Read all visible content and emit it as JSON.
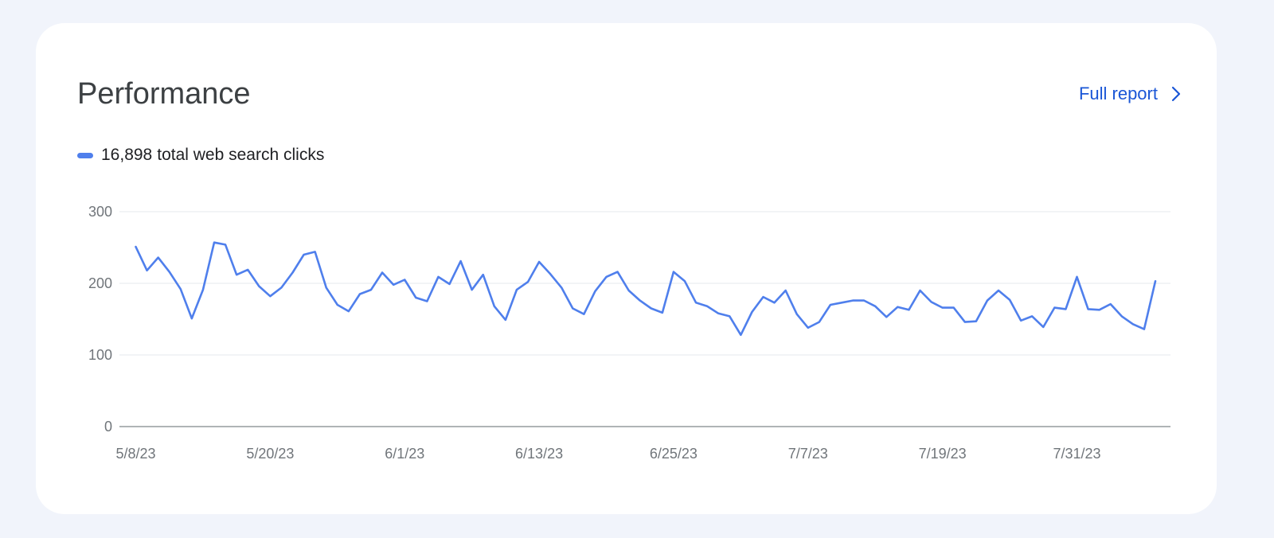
{
  "card": {
    "title": "Performance",
    "full_report_label": "Full report"
  },
  "legend": {
    "total": "16,898",
    "label": "total web search clicks",
    "color": "#4f7fec"
  },
  "colors": {
    "accent": "#1a56d6",
    "series": "#4f7fec",
    "grid": "#e6e8ec",
    "axis": "#80868b",
    "background": "#f1f4fb"
  },
  "chart_data": {
    "type": "line",
    "title": "",
    "xlabel": "",
    "ylabel": "",
    "ylim": [
      0,
      300
    ],
    "yticks": [
      0,
      100,
      200,
      300
    ],
    "xtick_labels": [
      "5/8/23",
      "5/20/23",
      "6/1/23",
      "6/13/23",
      "6/25/23",
      "7/7/23",
      "7/19/23",
      "7/31/23"
    ],
    "grid": true,
    "legend_position": "top-left",
    "x_start": "5/8/23",
    "x_end": "8/10/23",
    "series": [
      {
        "name": "total web search clicks",
        "color": "#4f7fec",
        "values": [
          251,
          218,
          236,
          216,
          192,
          151,
          191,
          257,
          254,
          212,
          219,
          196,
          182,
          194,
          215,
          240,
          244,
          194,
          170,
          161,
          185,
          191,
          215,
          198,
          205,
          180,
          175,
          209,
          199,
          231,
          191,
          212,
          168,
          149,
          191,
          202,
          230,
          213,
          194,
          165,
          157,
          189,
          209,
          216,
          190,
          176,
          165,
          159,
          216,
          203,
          173,
          168,
          158,
          154,
          128,
          160,
          181,
          173,
          190,
          157,
          138,
          146,
          170,
          173,
          176,
          176,
          168,
          153,
          167,
          163,
          190,
          174,
          166,
          166,
          146,
          147,
          176,
          190,
          177,
          148,
          154,
          139,
          166,
          164,
          209,
          164,
          163,
          171,
          154,
          143,
          136,
          203
        ]
      }
    ]
  }
}
